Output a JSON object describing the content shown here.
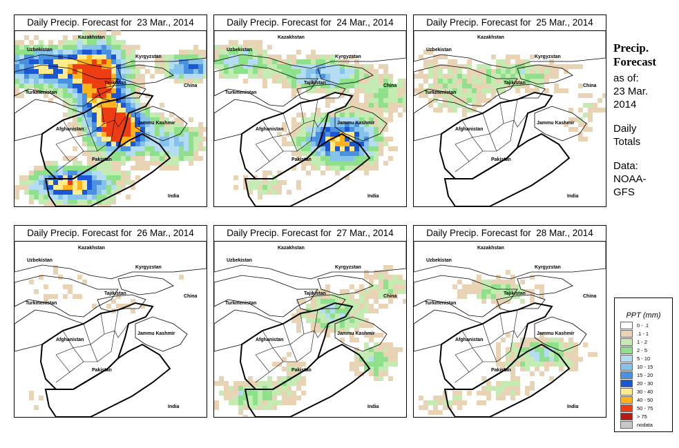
{
  "panels": [
    {
      "title": "Daily Precip. Forecast for  23 Mar., 2014",
      "intensity": 1.0
    },
    {
      "title": "Daily Precip. Forecast for  24 Mar., 2014",
      "intensity": 0.8
    },
    {
      "title": "Daily Precip. Forecast for  25 Mar., 2014",
      "intensity": 0.45
    },
    {
      "title": "Daily Precip. Forecast for  26 Mar., 2014",
      "intensity": 0.3
    },
    {
      "title": "Daily Precip. Forecast for  27 Mar., 2014",
      "intensity": 0.55
    },
    {
      "title": "Daily Precip. Forecast for  28 Mar., 2014",
      "intensity": 0.5
    }
  ],
  "map_labels": {
    "kazakhstan": "Kazakhstan",
    "uzbekistan": "Uzbekistan",
    "kyrgyzstan": "Kyrgyzstan",
    "tajikistan": "Tajikistan",
    "turkmenistan": "Turkmenistan",
    "china": "China",
    "afghanistan": "Afghanistan",
    "jammu_kashmir": "Jammu Kashmir",
    "pakistan": "Pakistan",
    "india": "India"
  },
  "side": {
    "heading_line1": "Precip.",
    "heading_line2": "Forecast",
    "asof_1": "as of:",
    "asof_2": "23 Mar.",
    "asof_3": "2014",
    "daily_1": "Daily",
    "daily_2": "Totals",
    "data_1": "Data:",
    "data_2": "NOAA-",
    "data_3": "GFS"
  },
  "legend": {
    "title": "PPT (mm)",
    "items": [
      {
        "label": "0 - .1",
        "color": "#ffffff"
      },
      {
        "label": ".1 - 1",
        "color": "#e8d3b4"
      },
      {
        "label": "1 - 2",
        "color": "#c4ecb2"
      },
      {
        "label": "2 - 5",
        "color": "#8fe08a"
      },
      {
        "label": "5 - 10",
        "color": "#b4dcf2"
      },
      {
        "label": "10 - 15",
        "color": "#86c3ea"
      },
      {
        "label": "15 - 20",
        "color": "#4a92e0"
      },
      {
        "label": "20 - 30",
        "color": "#1b56d4"
      },
      {
        "label": "30 - 40",
        "color": "#ffea8c"
      },
      {
        "label": "40 - 50",
        "color": "#ffb21c"
      },
      {
        "label": "50 - 75",
        "color": "#ee3d12"
      },
      {
        "label": "> 75",
        "color": "#b41c14"
      },
      {
        "label": "nodata",
        "color": "#c8c8c8"
      }
    ]
  }
}
